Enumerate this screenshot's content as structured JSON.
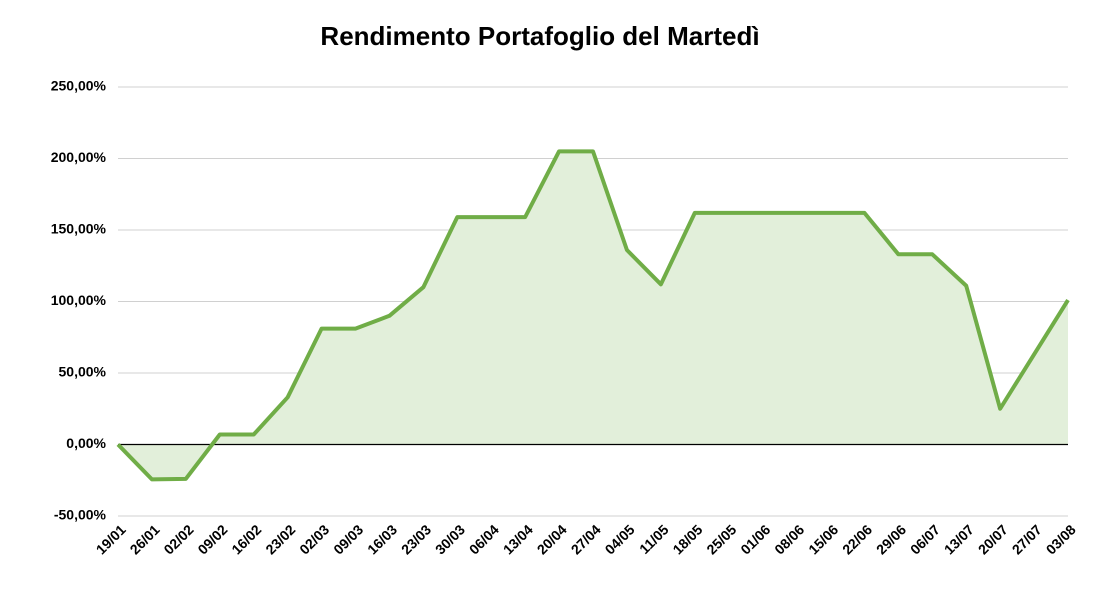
{
  "chart_data": {
    "type": "line",
    "title": "Rendimento Portafoglio del Martedì",
    "categories": [
      "19/01",
      "26/01",
      "02/02",
      "09/02",
      "16/02",
      "23/02",
      "02/03",
      "09/03",
      "16/03",
      "23/03",
      "30/03",
      "06/04",
      "13/04",
      "20/04",
      "27/04",
      "04/05",
      "11/05",
      "18/05",
      "25/05",
      "01/06",
      "08/06",
      "15/06",
      "22/06",
      "29/06",
      "06/07",
      "13/07",
      "20/07",
      "27/07",
      "03/08"
    ],
    "series": [
      {
        "color": "#70ad47",
        "values": [
          0,
          -24.4,
          -24,
          7,
          7,
          33,
          81,
          81,
          90,
          110,
          159,
          159,
          159,
          205,
          205,
          136,
          112,
          162,
          162,
          162,
          162,
          162,
          162,
          133,
          133,
          111,
          25,
          63,
          101
        ]
      }
    ],
    "area_color": "#e2efda",
    "ylim": [
      -50,
      250
    ],
    "yticks": [
      {
        "value": -50,
        "label": "-50,00%"
      },
      {
        "value": 0,
        "label": "0,00%"
      },
      {
        "value": 50,
        "label": "50,00%"
      },
      {
        "value": 100,
        "label": "100,00%"
      },
      {
        "value": 150,
        "label": "150,00%"
      },
      {
        "value": 200,
        "label": "200,00%"
      },
      {
        "value": 250,
        "label": "250,00%"
      }
    ],
    "grid": true
  }
}
